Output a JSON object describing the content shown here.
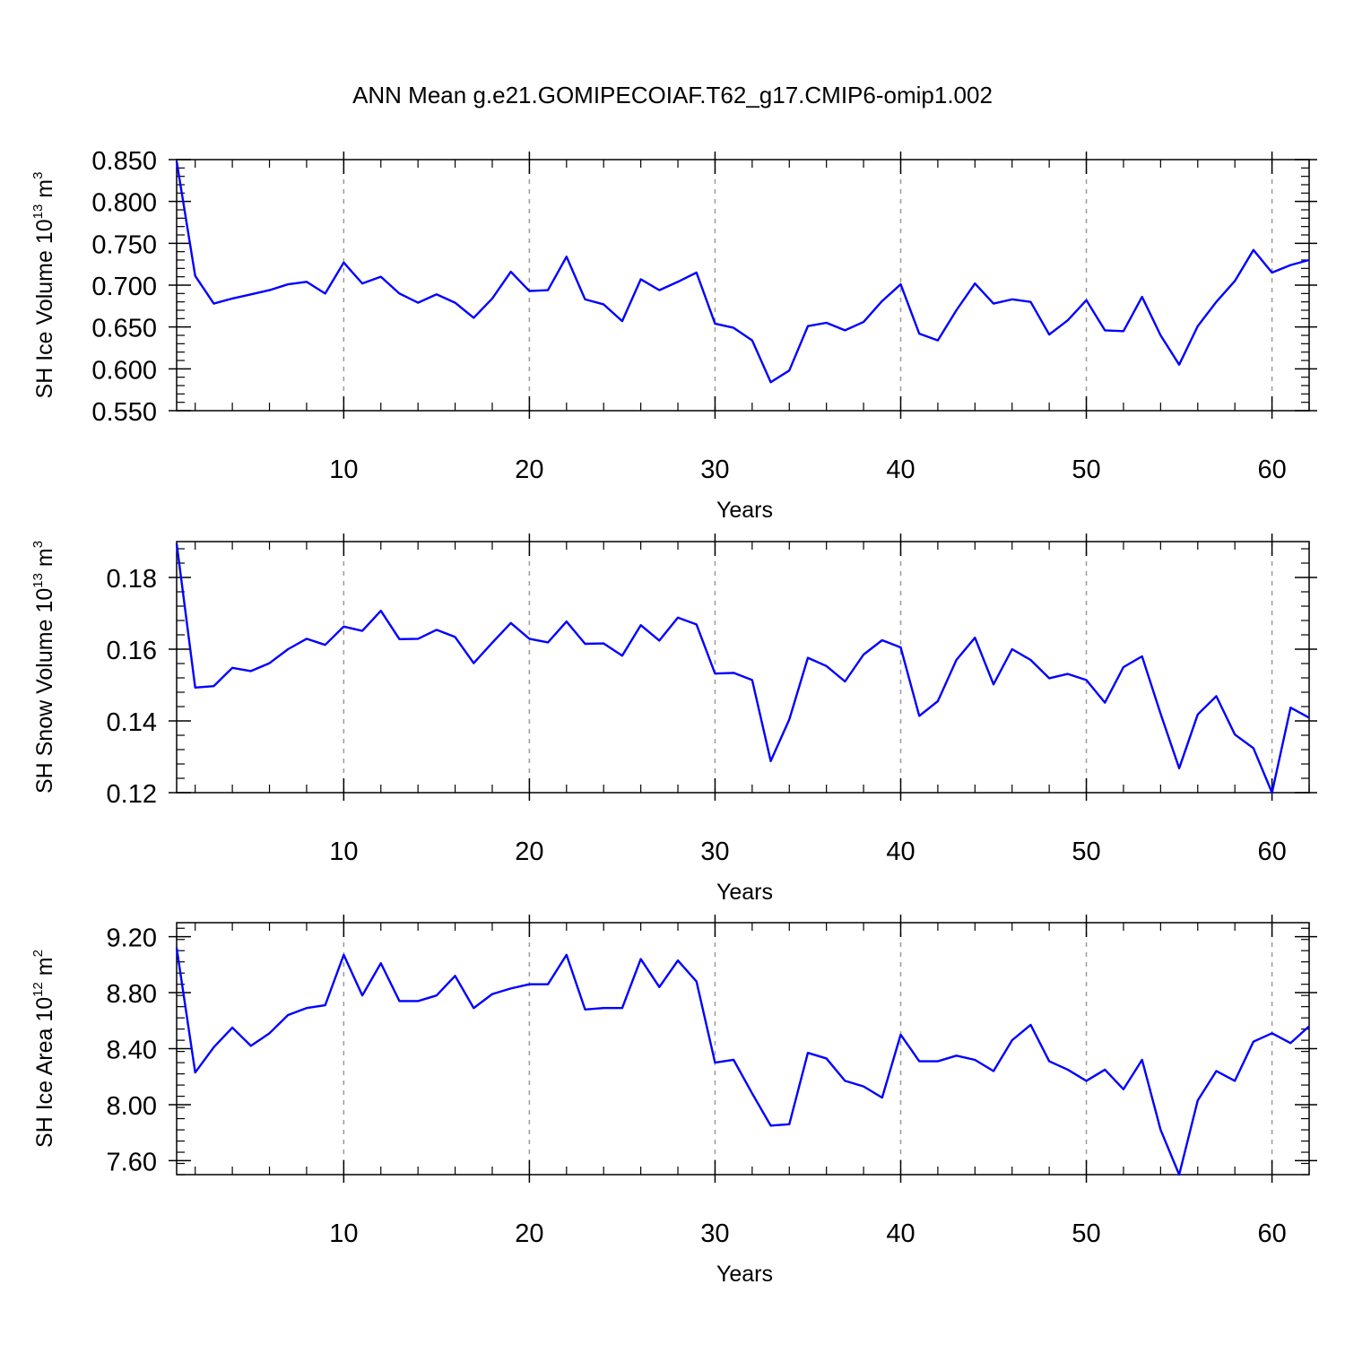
{
  "figure": {
    "title": "ANN Mean g.e21.GOMIPECOIAF.T62_g17.CMIP6-omip1.002"
  },
  "chart_data": [
    {
      "type": "line",
      "title": "",
      "xlabel": "Years",
      "ylabel": "SH Ice Volume 10",
      "ylabel_exp": "13",
      "ylabel_unit": " m",
      "ylabel_unit_exp": "3",
      "xlim": [
        1,
        62
      ],
      "ylim": [
        0.55,
        0.85
      ],
      "xticks": [
        10,
        20,
        30,
        40,
        50,
        60
      ],
      "xtick_labels": [
        "10",
        "20",
        "30",
        "40",
        "50",
        "60"
      ],
      "yticks": [
        0.55,
        0.6,
        0.65,
        0.7,
        0.75,
        0.8,
        0.85
      ],
      "ytick_labels": [
        "0.550",
        "0.600",
        "0.650",
        "0.700",
        "0.750",
        "0.800",
        "0.850"
      ],
      "grid": "vertical dashed at major x ticks",
      "series": [
        {
          "color": "#0000ff",
          "x": [
            1,
            2,
            3,
            4,
            5,
            6,
            7,
            8,
            9,
            10,
            11,
            12,
            13,
            14,
            15,
            16,
            17,
            18,
            19,
            20,
            21,
            22,
            23,
            24,
            25,
            26,
            27,
            28,
            29,
            30,
            31,
            32,
            33,
            34,
            35,
            36,
            37,
            38,
            39,
            40,
            41,
            42,
            43,
            44,
            45,
            46,
            47,
            48,
            49,
            50,
            51,
            52,
            53,
            54,
            55,
            56,
            57,
            58,
            59,
            60,
            61,
            62
          ],
          "y": [
            0.848,
            0.711,
            0.678,
            0.684,
            0.689,
            0.694,
            0.701,
            0.704,
            0.69,
            0.727,
            0.702,
            0.71,
            0.69,
            0.679,
            0.689,
            0.679,
            0.661,
            0.684,
            0.716,
            0.693,
            0.694,
            0.734,
            0.683,
            0.677,
            0.657,
            0.707,
            0.694,
            0.704,
            0.715,
            0.654,
            0.649,
            0.634,
            0.584,
            0.598,
            0.651,
            0.655,
            0.646,
            0.656,
            0.681,
            0.701,
            0.642,
            0.634,
            0.67,
            0.702,
            0.678,
            0.683,
            0.68,
            0.641,
            0.658,
            0.682,
            0.646,
            0.645,
            0.686,
            0.64,
            0.605,
            0.651,
            0.68,
            0.705,
            0.742,
            0.715,
            0.724,
            0.73
          ]
        }
      ]
    },
    {
      "type": "line",
      "title": "",
      "xlabel": "Years",
      "ylabel": "SH Snow Volume 10",
      "ylabel_exp": "13",
      "ylabel_unit": " m",
      "ylabel_unit_exp": "3",
      "xlim": [
        1,
        62
      ],
      "ylim": [
        0.12,
        0.19
      ],
      "xticks": [
        10,
        20,
        30,
        40,
        50,
        60
      ],
      "xtick_labels": [
        "10",
        "20",
        "30",
        "40",
        "50",
        "60"
      ],
      "yticks": [
        0.12,
        0.14,
        0.16,
        0.18
      ],
      "ytick_labels": [
        "0.12",
        "0.14",
        "0.16",
        "0.18"
      ],
      "grid": "vertical dashed at major x ticks",
      "series": [
        {
          "color": "#0000ff",
          "x": [
            1,
            2,
            3,
            4,
            5,
            6,
            7,
            8,
            9,
            10,
            11,
            12,
            13,
            14,
            15,
            16,
            17,
            18,
            19,
            20,
            21,
            22,
            23,
            24,
            25,
            26,
            27,
            28,
            29,
            30,
            31,
            32,
            33,
            34,
            35,
            36,
            37,
            38,
            39,
            40,
            41,
            42,
            43,
            44,
            45,
            46,
            47,
            48,
            49,
            50,
            51,
            52,
            53,
            54,
            55,
            56,
            57,
            58,
            59,
            60,
            61,
            62
          ],
          "y": [
            0.1895,
            0.1493,
            0.1497,
            0.1548,
            0.1539,
            0.1561,
            0.16,
            0.1629,
            0.1612,
            0.1663,
            0.1651,
            0.1707,
            0.1628,
            0.1629,
            0.1654,
            0.1634,
            0.1561,
            0.1618,
            0.1673,
            0.1629,
            0.1619,
            0.1677,
            0.1615,
            0.1616,
            0.1582,
            0.1667,
            0.1624,
            0.1688,
            0.1669,
            0.1532,
            0.1534,
            0.1514,
            0.1288,
            0.1404,
            0.1576,
            0.1553,
            0.151,
            0.1585,
            0.1625,
            0.1605,
            0.1414,
            0.1455,
            0.157,
            0.1632,
            0.1502,
            0.16,
            0.157,
            0.1519,
            0.1531,
            0.1514,
            0.1451,
            0.155,
            0.158,
            0.142,
            0.1268,
            0.1418,
            0.1469,
            0.1362,
            0.1324,
            0.12,
            0.1437,
            0.1409
          ]
        }
      ]
    },
    {
      "type": "line",
      "title": "",
      "xlabel": "Years",
      "ylabel": "SH Ice Area 10",
      "ylabel_exp": "12",
      "ylabel_unit": " m",
      "ylabel_unit_exp": "2",
      "xlim": [
        1,
        62
      ],
      "ylim": [
        7.5,
        9.3
      ],
      "xticks": [
        10,
        20,
        30,
        40,
        50,
        60
      ],
      "xtick_labels": [
        "10",
        "20",
        "30",
        "40",
        "50",
        "60"
      ],
      "yticks": [
        7.6,
        8.0,
        8.4,
        8.8,
        9.2
      ],
      "ytick_labels": [
        "7.60",
        "8.00",
        "8.40",
        "8.80",
        "9.20"
      ],
      "grid": "vertical dashed at major x ticks",
      "series": [
        {
          "color": "#0000ff",
          "x": [
            1,
            2,
            3,
            4,
            5,
            6,
            7,
            8,
            9,
            10,
            11,
            12,
            13,
            14,
            15,
            16,
            17,
            18,
            19,
            20,
            21,
            22,
            23,
            24,
            25,
            26,
            27,
            28,
            29,
            30,
            31,
            32,
            33,
            34,
            35,
            36,
            37,
            38,
            39,
            40,
            41,
            42,
            43,
            44,
            45,
            46,
            47,
            48,
            49,
            50,
            51,
            52,
            53,
            54,
            55,
            56,
            57,
            58,
            59,
            60,
            61,
            62
          ],
          "y": [
            9.12,
            8.23,
            8.41,
            8.55,
            8.42,
            8.51,
            8.64,
            8.69,
            8.71,
            9.07,
            8.78,
            9.01,
            8.74,
            8.74,
            8.78,
            8.92,
            8.69,
            8.79,
            8.83,
            8.86,
            8.86,
            9.07,
            8.68,
            8.69,
            8.69,
            9.04,
            8.84,
            9.03,
            8.88,
            8.3,
            8.32,
            8.08,
            7.85,
            7.86,
            8.37,
            8.33,
            8.17,
            8.13,
            8.05,
            8.5,
            8.31,
            8.31,
            8.35,
            8.32,
            8.24,
            8.46,
            8.57,
            8.31,
            8.25,
            8.17,
            8.25,
            8.11,
            8.32,
            7.82,
            7.5,
            8.03,
            8.24,
            8.17,
            8.45,
            8.51,
            8.44,
            8.56
          ]
        }
      ]
    }
  ]
}
